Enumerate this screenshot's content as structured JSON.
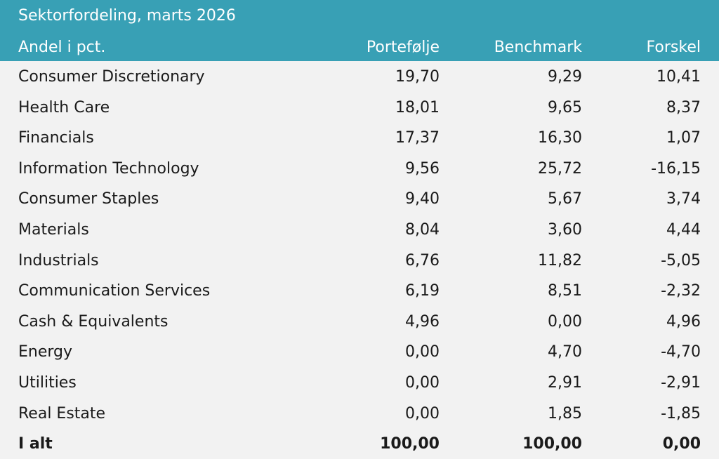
{
  "chart_data": {
    "type": "table",
    "title": "Sektorfordeling, marts 2026",
    "columns": [
      "Andel i pct.",
      "Portefølje",
      "Benchmark",
      "Forskel"
    ],
    "rows": [
      {
        "sector": "Consumer Discretionary",
        "portfolio": "19,70",
        "benchmark": "9,29",
        "difference": "10,41"
      },
      {
        "sector": "Health Care",
        "portfolio": "18,01",
        "benchmark": "9,65",
        "difference": "8,37"
      },
      {
        "sector": "Financials",
        "portfolio": "17,37",
        "benchmark": "16,30",
        "difference": "1,07"
      },
      {
        "sector": "Information Technology",
        "portfolio": "9,56",
        "benchmark": "25,72",
        "difference": "-16,15"
      },
      {
        "sector": "Consumer Staples",
        "portfolio": "9,40",
        "benchmark": "5,67",
        "difference": "3,74"
      },
      {
        "sector": "Materials",
        "portfolio": "8,04",
        "benchmark": "3,60",
        "difference": "4,44"
      },
      {
        "sector": "Industrials",
        "portfolio": "6,76",
        "benchmark": "11,82",
        "difference": "-5,05"
      },
      {
        "sector": "Communication Services",
        "portfolio": "6,19",
        "benchmark": "8,51",
        "difference": "-2,32"
      },
      {
        "sector": "Cash & Equivalents",
        "portfolio": "4,96",
        "benchmark": "0,00",
        "difference": "4,96"
      },
      {
        "sector": "Energy",
        "portfolio": "0,00",
        "benchmark": "4,70",
        "difference": "-4,70"
      },
      {
        "sector": "Utilities",
        "portfolio": "0,00",
        "benchmark": "2,91",
        "difference": "-2,91"
      },
      {
        "sector": "Real Estate",
        "portfolio": "0,00",
        "benchmark": "1,85",
        "difference": "-1,85"
      }
    ],
    "total": {
      "sector": "I alt",
      "portfolio": "100,00",
      "benchmark": "100,00",
      "difference": "0,00"
    }
  },
  "colors": {
    "header_bg": "#38a0b5",
    "header_text": "#ffffff",
    "body_bg": "#f2f2f2",
    "body_text": "#1a1a1a"
  }
}
